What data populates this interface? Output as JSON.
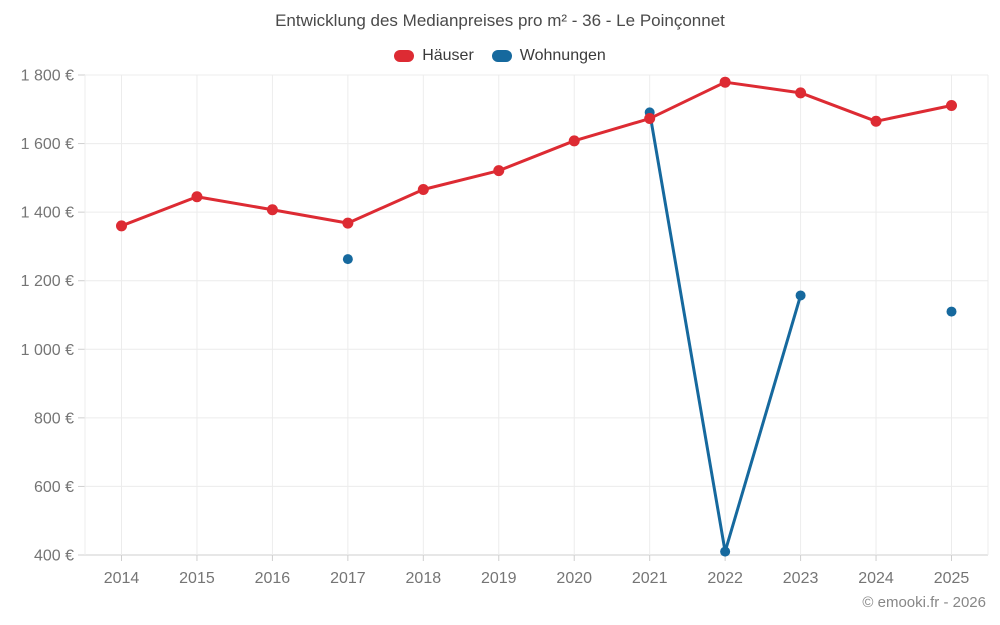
{
  "title": "Entwicklung des Medianpreises pro m² - 36 - Le Poinçonnet",
  "legend": {
    "items": [
      {
        "label": "Häuser",
        "color": "#dd2b33"
      },
      {
        "label": "Wohnungen",
        "color": "#16699e"
      }
    ]
  },
  "watermark": "© emooki.fr - 2026",
  "axes": {
    "x_labels": [
      "2014",
      "2015",
      "2016",
      "2017",
      "2018",
      "2019",
      "2020",
      "2021",
      "2022",
      "2023",
      "2024",
      "2025"
    ],
    "y_tick_labels": [
      "1 800 €",
      "1 600 €",
      "1 400 €",
      "1 200 €",
      "1 000 €",
      "800 €",
      "600 €",
      "400 €"
    ],
    "y_tick_values": [
      1800,
      1600,
      1400,
      1200,
      1000,
      800,
      600,
      400
    ]
  },
  "styles": {
    "grid_color": "#ececec",
    "axis_color": "#cfcfcf",
    "tick_text_color": "#757575",
    "point_radius_hauser": 5.5,
    "point_radius_wohnungen": 5,
    "line_width": 3
  },
  "chart_data": {
    "type": "line",
    "title": "Entwicklung des Medianpreises pro m² - 36 - Le Poinçonnet",
    "x": [
      2014,
      2015,
      2016,
      2017,
      2018,
      2019,
      2020,
      2021,
      2022,
      2023,
      2024,
      2025
    ],
    "series": [
      {
        "name": "Häuser",
        "color": "#dd2b33",
        "values": [
          1360,
          1445,
          1407,
          1368,
          1466,
          1521,
          1608,
          1673,
          1779,
          1748,
          1665,
          1711
        ]
      },
      {
        "name": "Wohnungen",
        "color": "#16699e",
        "values": [
          null,
          null,
          null,
          1263,
          null,
          null,
          null,
          1691,
          410,
          1157,
          null,
          1110
        ]
      }
    ],
    "xlabel": "",
    "ylabel": "",
    "ylim": [
      400,
      1800
    ],
    "ytick_step": 200,
    "grid": true,
    "legend_position": "top",
    "note": "Wohnungen series has isolated points in 2017 and 2025 (no connecting line); connected segment 2021-2022-2023"
  }
}
